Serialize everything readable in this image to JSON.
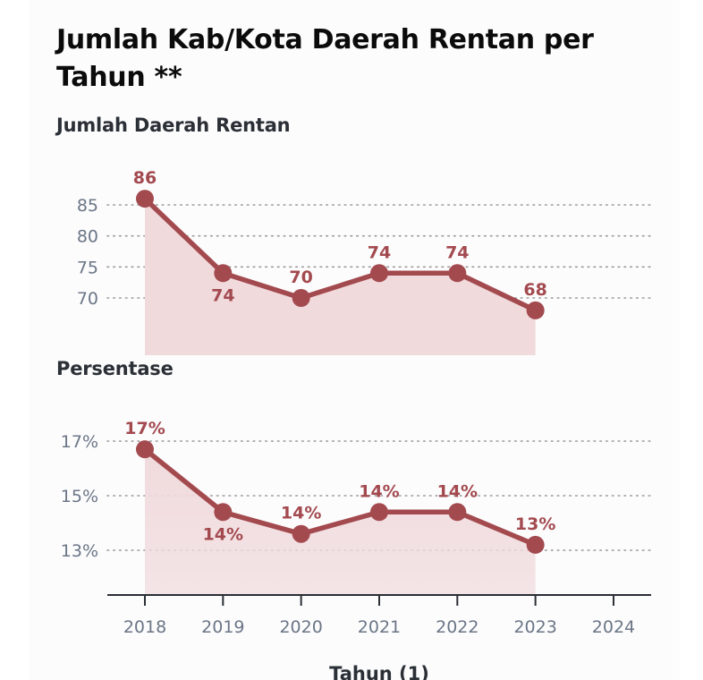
{
  "header": {
    "title": "Jumlah Kab/Kota Daerah Rentan  per Tahun **"
  },
  "colors": {
    "line": "#a34a4f",
    "area": "#f0dadc",
    "grid": "#9a9a9a",
    "axis": "#2b2f36",
    "tick": "#6b7686"
  },
  "chart_data": [
    {
      "type": "area",
      "title": "Jumlah Daerah Rentan",
      "xlabel": "Tahun (1)",
      "ylabel": "",
      "x": [
        2018,
        2019,
        2020,
        2021,
        2022,
        2023
      ],
      "x_ticks": [
        "2018",
        "2019",
        "2020",
        "2021",
        "2022",
        "2023",
        "2024"
      ],
      "y_ticks": [
        "85",
        "80",
        "75",
        "70"
      ],
      "y_tick_values": [
        85,
        80,
        75,
        70
      ],
      "series": [
        {
          "name": "Jumlah Daerah Rentan",
          "values": [
            86,
            74,
            70,
            74,
            74,
            68
          ]
        }
      ],
      "data_labels": [
        "86",
        "74",
        "70",
        "74",
        "74",
        "68"
      ],
      "grid": true
    },
    {
      "type": "area",
      "title": "Persentase",
      "xlabel": "Tahun (1)",
      "ylabel": "",
      "x": [
        2018,
        2019,
        2020,
        2021,
        2022,
        2023
      ],
      "x_ticks": [
        "2018",
        "2019",
        "2020",
        "2021",
        "2022",
        "2023",
        "2024"
      ],
      "y_ticks": [
        "17%",
        "15%",
        "13%"
      ],
      "y_tick_values": [
        17,
        15,
        13
      ],
      "series": [
        {
          "name": "Persentase",
          "values": [
            16.7,
            14.4,
            13.6,
            14.4,
            14.4,
            13.2
          ]
        }
      ],
      "data_labels": [
        "17%",
        "14%",
        "14%",
        "14%",
        "14%",
        "13%"
      ],
      "grid": true
    }
  ]
}
